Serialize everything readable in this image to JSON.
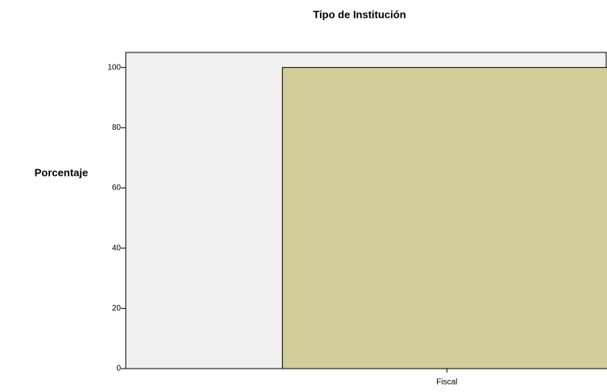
{
  "chart_data": {
    "type": "bar",
    "title": "Tipo de Institución",
    "ylabel": "Porcentaje",
    "categories": [
      "Fiscal"
    ],
    "values": [
      100
    ],
    "color": "#d3cd99",
    "ylim": [
      0,
      105
    ],
    "yticks": [
      0,
      20,
      40,
      60,
      80,
      100
    ],
    "grid": false
  }
}
